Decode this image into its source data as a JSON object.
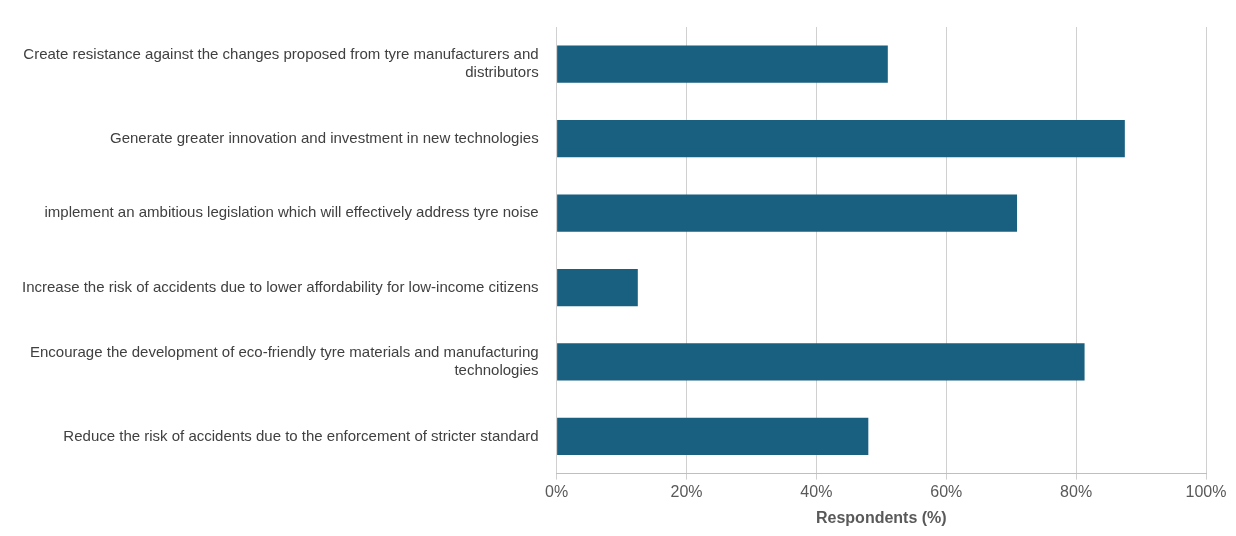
{
  "chart_data": {
    "type": "bar",
    "orientation": "horizontal",
    "categories": [
      "Create resistance against the changes proposed from tyre manufacturers and distributors",
      "Generate greater innovation and investment in new technologies",
      "implement an ambitious legislation which will effectively address tyre noise",
      "Increase the risk of accidents due to lower affordability for low-income citizens",
      "Encourage the development of eco-friendly tyre materials and manufacturing technologies",
      "Reduce the risk of accidents due to the enforcement of stricter standard"
    ],
    "values": [
      51.0,
      87.5,
      70.9,
      12.5,
      81.3,
      48.0
    ],
    "color": "#185f80",
    "xlabel": "Respondents (%)",
    "xlim": [
      0,
      100
    ],
    "xticks": [
      {
        "value": 0,
        "label": "0%"
      },
      {
        "value": 20,
        "label": "20%"
      },
      {
        "value": 40,
        "label": "40%"
      },
      {
        "value": 60,
        "label": "60%"
      },
      {
        "value": 80,
        "label": "80%"
      },
      {
        "value": 100,
        "label": "100%"
      }
    ],
    "grid": "x"
  }
}
